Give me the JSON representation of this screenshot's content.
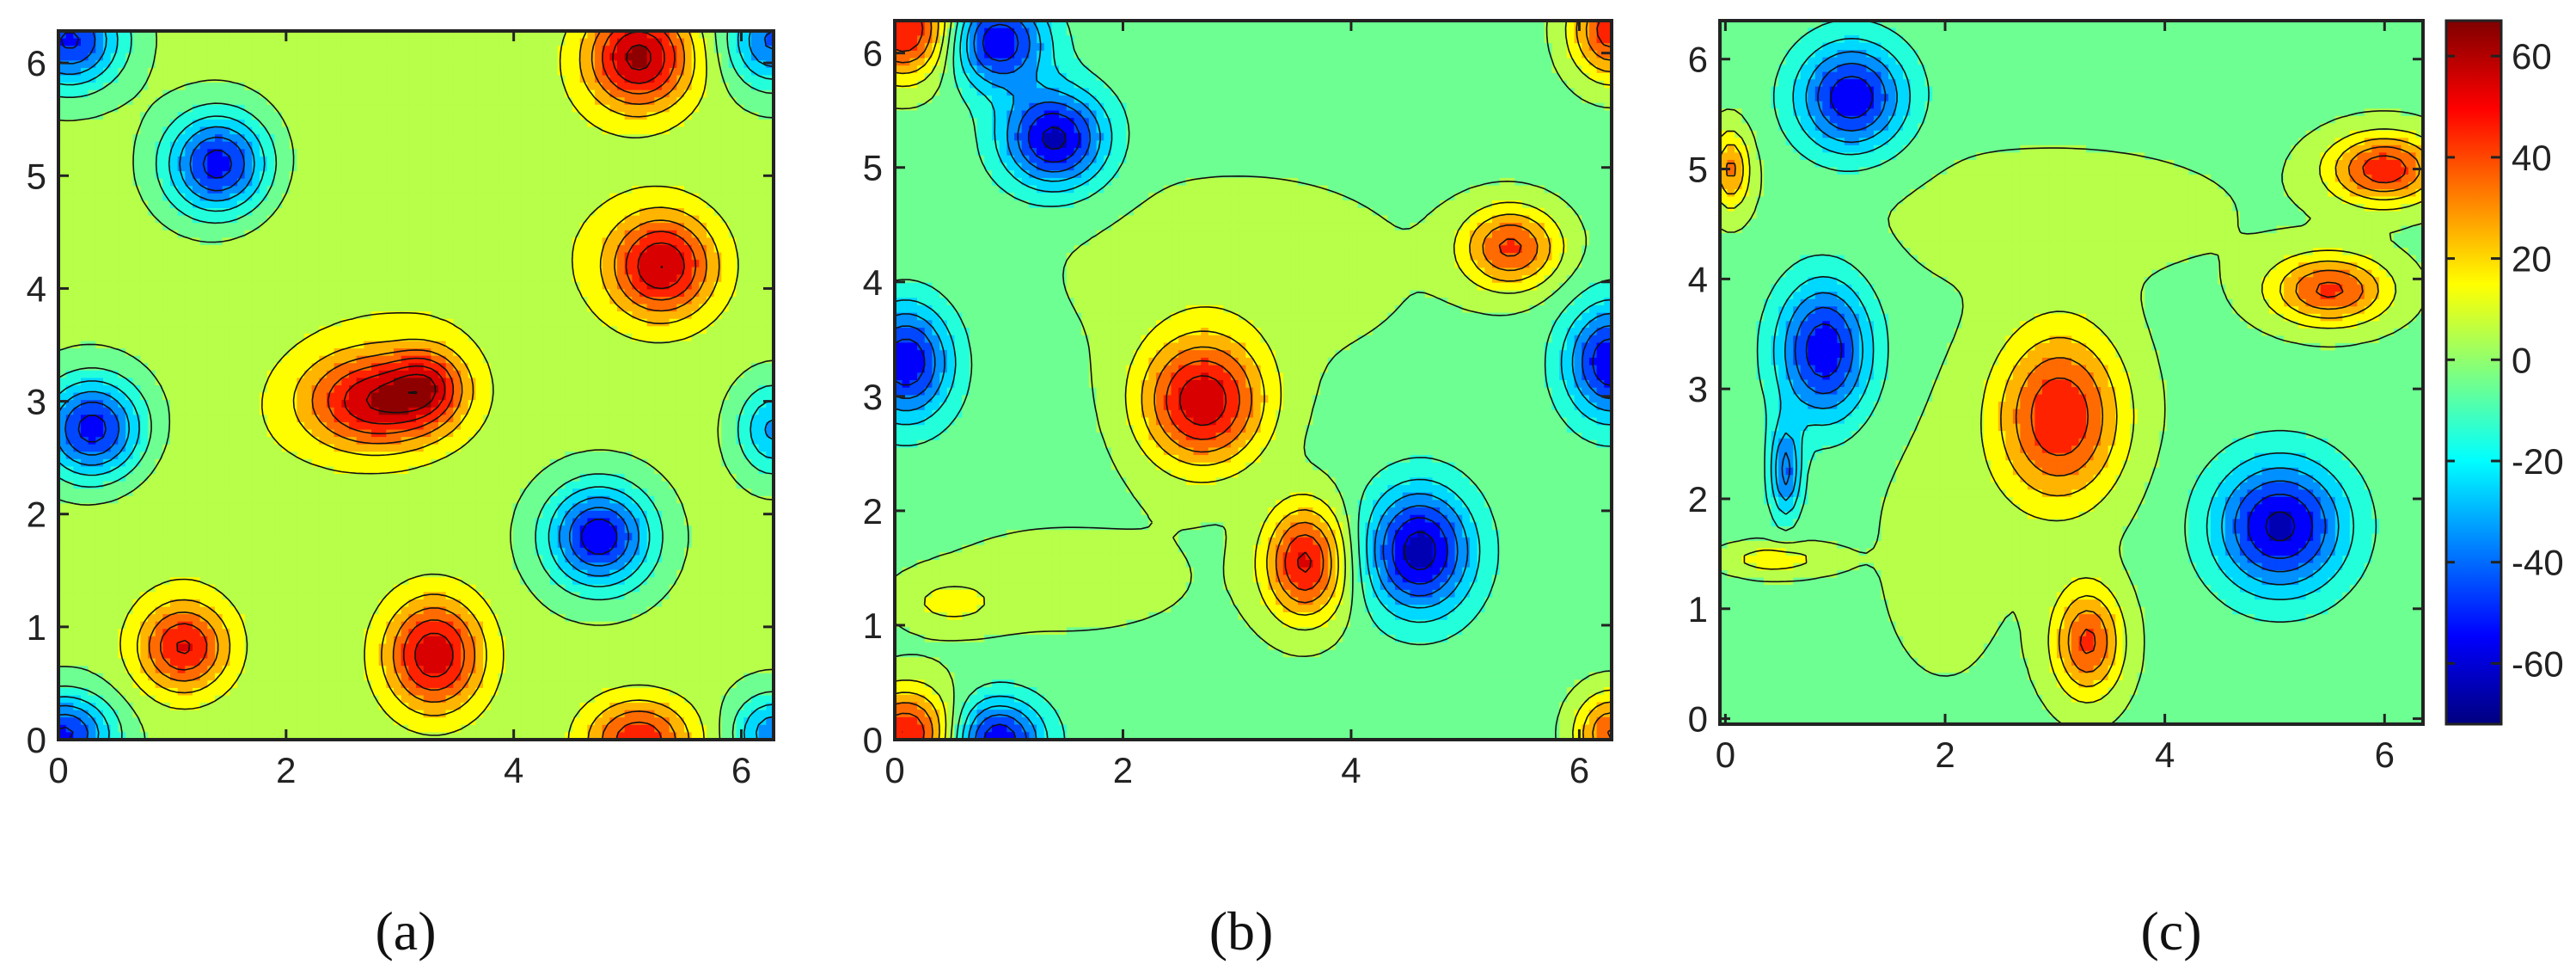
{
  "figure": {
    "captions": [
      "(a)",
      "(b)",
      "(c)"
    ]
  },
  "colorbar": {
    "min": -72,
    "max": 67,
    "ticks": [
      60,
      40,
      20,
      0,
      -20,
      -40,
      -60
    ],
    "tick_labels": [
      "60",
      "40",
      "20",
      "0",
      "-20",
      "-40",
      "-60"
    ],
    "colormap": "jet",
    "colors": [
      "#00007f",
      "#0000ff",
      "#007fff",
      "#00ffff",
      "#7fff7f",
      "#ffff00",
      "#ff7f00",
      "#ff0000",
      "#7f0000"
    ]
  },
  "chart_data": [
    {
      "type": "contour",
      "caption": "(a)",
      "xlim": [
        0,
        6.2832
      ],
      "ylim": [
        0,
        6.2832
      ],
      "xticks": [
        0,
        2,
        4,
        6
      ],
      "xtick_labels": [
        "0",
        "2",
        "4",
        "6"
      ],
      "yticks": [
        0,
        1,
        2,
        3,
        4,
        5,
        6
      ],
      "ytick_labels": [
        "0",
        "1",
        "2",
        "3",
        "4",
        "5",
        "6"
      ],
      "background_level": 3,
      "blobs": [
        {
          "x": 0.1,
          "y": 6.2,
          "amp": -55,
          "sx": 0.32,
          "sy": 0.3
        },
        {
          "x": 6.28,
          "y": 6.2,
          "amp": -45,
          "sx": 0.28,
          "sy": 0.3
        },
        {
          "x": 1.4,
          "y": 5.1,
          "amp": -60,
          "sx": 0.32,
          "sy": 0.32
        },
        {
          "x": 5.1,
          "y": 6.05,
          "amp": 60,
          "sx": 0.32,
          "sy": 0.32
        },
        {
          "x": 5.3,
          "y": 4.2,
          "amp": 55,
          "sx": 0.32,
          "sy": 0.32
        },
        {
          "x": 0.3,
          "y": 2.75,
          "amp": -60,
          "sx": 0.32,
          "sy": 0.32
        },
        {
          "x": 6.28,
          "y": 2.75,
          "amp": -35,
          "sx": 0.22,
          "sy": 0.28
        },
        {
          "x": 2.8,
          "y": 3.0,
          "amp": 55,
          "sx": 0.45,
          "sy": 0.3
        },
        {
          "x": 3.25,
          "y": 3.15,
          "amp": 30,
          "sx": 0.22,
          "sy": 0.22
        },
        {
          "x": 4.75,
          "y": 1.8,
          "amp": -60,
          "sx": 0.32,
          "sy": 0.32
        },
        {
          "x": 1.1,
          "y": 0.82,
          "amp": 48,
          "sx": 0.28,
          "sy": 0.28
        },
        {
          "x": 3.3,
          "y": 0.75,
          "amp": 55,
          "sx": 0.3,
          "sy": 0.35
        },
        {
          "x": 0.05,
          "y": 0.05,
          "amp": -55,
          "sx": 0.3,
          "sy": 0.25
        },
        {
          "x": 6.28,
          "y": 0.05,
          "amp": -40,
          "sx": 0.25,
          "sy": 0.25
        },
        {
          "x": 5.1,
          "y": 0.0,
          "amp": 45,
          "sx": 0.32,
          "sy": 0.25
        },
        {
          "x": 3.2,
          "y": 4.5,
          "amp": 7,
          "sx": 1.4,
          "sy": 0.9
        },
        {
          "x": 1.0,
          "y": 2.2,
          "amp": 5,
          "sx": 1.0,
          "sy": 0.6
        }
      ]
    },
    {
      "type": "contour",
      "caption": "(b)",
      "xlim": [
        0,
        6.2832
      ],
      "ylim": [
        0,
        6.2832
      ],
      "xticks": [
        0,
        2,
        4,
        6
      ],
      "xtick_labels": [
        "0",
        "2",
        "4",
        "6"
      ],
      "yticks": [
        0,
        1,
        2,
        3,
        4,
        5,
        6
      ],
      "ytick_labels": [
        "0",
        "1",
        "2",
        "3",
        "4",
        "5",
        "6"
      ],
      "background_level": -4,
      "blobs": [
        {
          "x": 0.1,
          "y": 6.2,
          "amp": 55,
          "sx": 0.3,
          "sy": 0.3
        },
        {
          "x": 6.28,
          "y": 6.2,
          "amp": 50,
          "sx": 0.25,
          "sy": 0.3
        },
        {
          "x": 0.9,
          "y": 6.1,
          "amp": -55,
          "sx": 0.3,
          "sy": 0.28
        },
        {
          "x": 1.4,
          "y": 5.25,
          "amp": -60,
          "sx": 0.32,
          "sy": 0.3
        },
        {
          "x": 5.4,
          "y": 4.3,
          "amp": 45,
          "sx": 0.3,
          "sy": 0.25
        },
        {
          "x": 0.1,
          "y": 3.3,
          "amp": -55,
          "sx": 0.28,
          "sy": 0.35
        },
        {
          "x": 6.28,
          "y": 3.3,
          "amp": -55,
          "sx": 0.28,
          "sy": 0.35
        },
        {
          "x": 2.7,
          "y": 2.95,
          "amp": 60,
          "sx": 0.38,
          "sy": 0.4
        },
        {
          "x": 3.6,
          "y": 1.55,
          "amp": 55,
          "sx": 0.25,
          "sy": 0.35
        },
        {
          "x": 4.6,
          "y": 1.65,
          "amp": -62,
          "sx": 0.32,
          "sy": 0.38
        },
        {
          "x": 0.1,
          "y": 0.05,
          "amp": 55,
          "sx": 0.3,
          "sy": 0.28
        },
        {
          "x": 0.9,
          "y": 0.0,
          "amp": -55,
          "sx": 0.28,
          "sy": 0.25
        },
        {
          "x": 6.28,
          "y": 0.05,
          "amp": 45,
          "sx": 0.22,
          "sy": 0.25
        },
        {
          "x": 0.5,
          "y": 1.2,
          "amp": 15,
          "sx": 0.3,
          "sy": 0.15
        },
        {
          "x": 3.0,
          "y": 4.1,
          "amp": 8,
          "sx": 1.3,
          "sy": 0.7
        },
        {
          "x": 1.5,
          "y": 1.4,
          "amp": 6,
          "sx": 1.2,
          "sy": 0.5
        }
      ]
    },
    {
      "type": "contour",
      "caption": "(c)",
      "xlim": [
        -0.05,
        6.35
      ],
      "ylim": [
        -0.05,
        6.35
      ],
      "xticks": [
        0,
        2,
        4,
        6
      ],
      "xtick_labels": [
        "0",
        "2",
        "4",
        "6"
      ],
      "yticks": [
        0,
        1,
        2,
        3,
        4,
        5,
        6
      ],
      "ytick_labels": [
        "0",
        "1",
        "2",
        "3",
        "4",
        "5",
        "6"
      ],
      "background_level": -3,
      "blobs": [
        {
          "x": 1.15,
          "y": 5.65,
          "amp": -55,
          "sx": 0.35,
          "sy": 0.35
        },
        {
          "x": 6.0,
          "y": 5.0,
          "amp": 50,
          "sx": 0.35,
          "sy": 0.22
        },
        {
          "x": 0.05,
          "y": 5.0,
          "amp": 35,
          "sx": 0.12,
          "sy": 0.25
        },
        {
          "x": 5.5,
          "y": 3.9,
          "amp": 45,
          "sx": 0.38,
          "sy": 0.22
        },
        {
          "x": 0.9,
          "y": 3.35,
          "amp": -55,
          "sx": 0.3,
          "sy": 0.45
        },
        {
          "x": 3.05,
          "y": 2.75,
          "amp": 52,
          "sx": 0.4,
          "sy": 0.55
        },
        {
          "x": 0.55,
          "y": 2.25,
          "amp": -40,
          "sx": 0.1,
          "sy": 0.3
        },
        {
          "x": 5.05,
          "y": 1.75,
          "amp": -60,
          "sx": 0.42,
          "sy": 0.42
        },
        {
          "x": 0.45,
          "y": 1.45,
          "amp": 20,
          "sx": 0.32,
          "sy": 0.1
        },
        {
          "x": 3.3,
          "y": 0.7,
          "amp": 45,
          "sx": 0.22,
          "sy": 0.35
        },
        {
          "x": 3.0,
          "y": 4.6,
          "amp": 6,
          "sx": 1.4,
          "sy": 0.5
        },
        {
          "x": 2.0,
          "y": 1.6,
          "amp": 5,
          "sx": 0.6,
          "sy": 1.2
        }
      ]
    }
  ]
}
